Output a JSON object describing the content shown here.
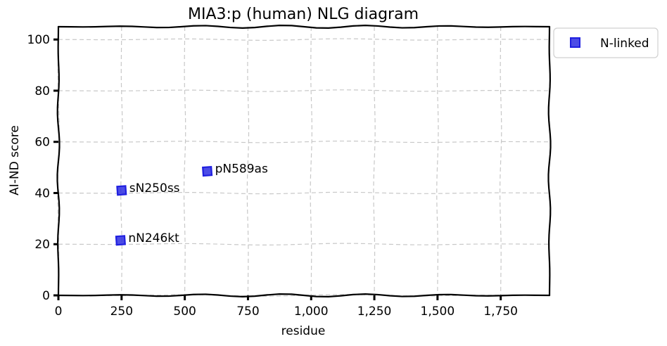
{
  "chart_data": {
    "type": "scatter",
    "title": "MIA3:p (human) NLG diagram",
    "xlabel": "residue",
    "ylabel": "AI-ND score",
    "xlim": [
      0,
      1943
    ],
    "ylim": [
      0,
      105
    ],
    "xticks": [
      0,
      250,
      500,
      750,
      1000,
      1250,
      1500,
      1750
    ],
    "xtick_labels": [
      "0",
      "250",
      "500",
      "750",
      "1,000",
      "1,250",
      "1,500",
      "1,750"
    ],
    "yticks": [
      0,
      20,
      40,
      60,
      80,
      100
    ],
    "ytick_labels": [
      "0",
      "20",
      "40",
      "60",
      "80",
      "100"
    ],
    "grid": true,
    "legend_position": "outside-top-right",
    "series": [
      {
        "name": "N-linked",
        "color": "#1f1fe0",
        "marker": "square",
        "points": [
          {
            "x": 246,
            "y": 21.5,
            "label": "nN246kt"
          },
          {
            "x": 250,
            "y": 41,
            "label": "sN250ss"
          },
          {
            "x": 589,
            "y": 48.5,
            "label": "pN589as"
          }
        ]
      }
    ]
  }
}
